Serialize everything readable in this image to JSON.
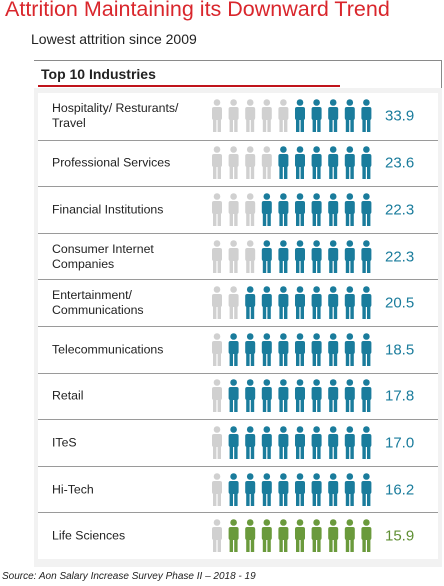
{
  "page": {
    "title": "Attrition Maintaining its Downward Trend",
    "subtitle": "Lowest attrition since 2009",
    "source": "Source: Aon Salary Increase Survey Phase II – 2018 - 19"
  },
  "colors": {
    "title": "#d9262c",
    "highlight_icon": "#1a7c9c",
    "highlight_value": "#1a7c9c",
    "life_sciences_icon": "#6a9a3c",
    "life_sciences_value": "#5f8f33",
    "grey_icon": "#d0d0d0"
  },
  "chart_data": {
    "type": "pictograph",
    "header": "Top 10 Industries",
    "icons_per_row": 10,
    "categories": [
      "Hospitality/ Resturants/\nTravel",
      "Professional Services",
      "Financial Institutions",
      "Consumer Internet\nCompanies",
      "Entertainment/\nCommunications",
      "Telecommunications",
      "Retail",
      "ITeS",
      "Hi-Tech",
      "Life Sciences"
    ],
    "values": [
      "33.9",
      "23.6",
      "22.3",
      "22.3",
      "20.5",
      "18.5",
      "17.8",
      "17.0",
      "16.2",
      "15.9"
    ],
    "highlighted_icons": [
      5,
      6,
      7,
      7,
      8,
      9,
      9,
      9,
      9,
      9
    ],
    "row_color": [
      "blue",
      "blue",
      "blue",
      "blue",
      "blue",
      "blue",
      "blue",
      "blue",
      "blue",
      "green"
    ]
  }
}
